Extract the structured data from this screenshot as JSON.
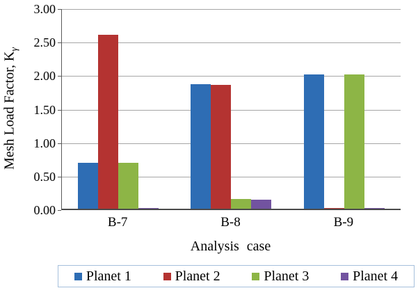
{
  "chart_data": {
    "type": "bar",
    "title": "",
    "categories": [
      "B-7",
      "B-8",
      "B-9"
    ],
    "series": [
      {
        "name": "Planet 1",
        "color": "#2E6DB4",
        "values": [
          0.69,
          1.86,
          2.0
        ]
      },
      {
        "name": "Planet 2",
        "color": "#B43331",
        "values": [
          2.6,
          1.85,
          0.01
        ]
      },
      {
        "name": "Planet 3",
        "color": "#8DB546",
        "values": [
          0.69,
          0.15,
          2.0
        ]
      },
      {
        "name": "Planet 4",
        "color": "#7253A0",
        "values": [
          0.01,
          0.13,
          0.01
        ]
      }
    ],
    "xlabel": "Analysis case",
    "ylabel": "Mesh Load Factor, K",
    "ylabel_subscript": "γ",
    "ylim": [
      0,
      3
    ],
    "yticks": [
      "0.00",
      "0.50",
      "1.00",
      "1.50",
      "2.00",
      "2.50",
      "3.00"
    ],
    "grid": "horizontal",
    "legend_position": "bottom"
  },
  "colors": {
    "gridline": "#A6A6A6",
    "axis_line": "#4a4a4a",
    "legend_border": "#A6C0DC"
  }
}
